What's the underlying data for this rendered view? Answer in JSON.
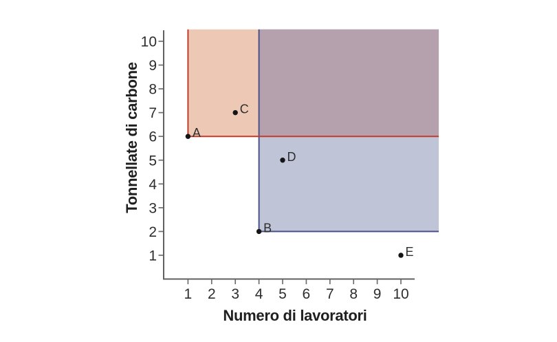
{
  "figure": {
    "background": "#ffffff",
    "axis_color": "#606060",
    "tick_color": "#6e6e6e",
    "tick_label_color": "#2d2d2d",
    "axis_title_color": "#1f1f1f",
    "point_color": "#151515",
    "point_label_color": "#2e2e2e"
  },
  "chart_data": {
    "type": "scatter",
    "title": "",
    "xlabel": "Numero di lavoratori",
    "ylabel": "Tonnellate di carbone",
    "xlim": [
      0,
      11.6
    ],
    "ylim": [
      0,
      10.5
    ],
    "xticks": [
      1,
      2,
      3,
      4,
      5,
      6,
      7,
      8,
      9,
      10
    ],
    "yticks": [
      1,
      2,
      3,
      4,
      5,
      6,
      7,
      8,
      9,
      10
    ],
    "grid": false,
    "legend": null,
    "points": [
      {
        "label": "A",
        "x": 1,
        "y": 6
      },
      {
        "label": "B",
        "x": 4,
        "y": 2
      },
      {
        "label": "C",
        "x": 3,
        "y": 7
      },
      {
        "label": "D",
        "x": 5,
        "y": 5
      },
      {
        "label": "E",
        "x": 10,
        "y": 1
      }
    ],
    "regions": [
      {
        "name": "region-above-A",
        "x_min": 1,
        "y_min": 6,
        "fill": "#edc9b5",
        "border_color": "#c03b2b"
      },
      {
        "name": "region-above-B",
        "x_min": 4,
        "y_min": 2,
        "fill": "#bfc5d7",
        "border_color": "#4a5189"
      },
      {
        "name": "region-overlap",
        "x_min": 4,
        "y_min": 6,
        "fill": "#b5a1ad",
        "border_color": null
      }
    ]
  }
}
